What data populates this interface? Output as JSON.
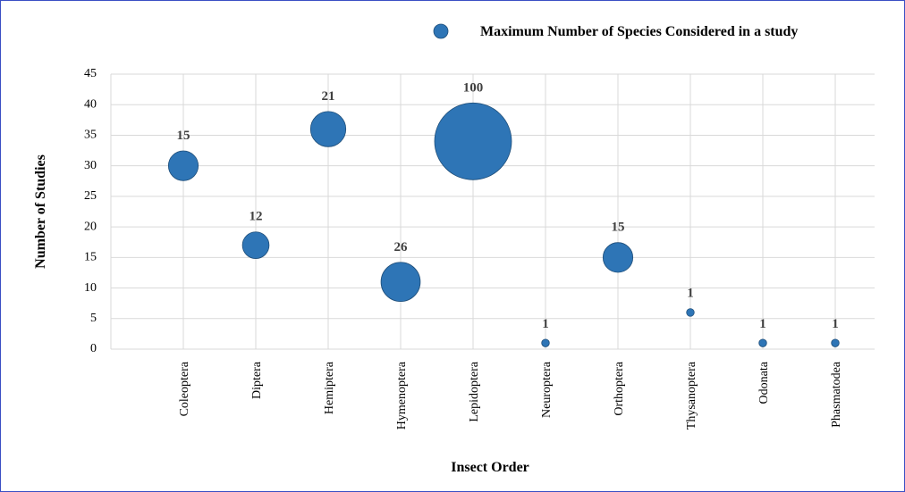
{
  "chart_data": {
    "type": "bubble",
    "x_label": "Insect Order",
    "y_label": "Number of Studies",
    "categories": [
      "Coleoptera",
      "Diptera",
      "Hemiptera",
      "Hymenoptera",
      "Lepidoptera",
      "Neuroptera",
      "Orthoptera",
      "Thysanoptera",
      "Odonata",
      "Phasmatodea"
    ],
    "series": [
      {
        "name": "Maximum Number of Species Considered in a study",
        "color": "#2e75b6",
        "values": [
          30,
          17,
          36,
          11,
          34,
          1,
          15,
          6,
          1,
          1
        ],
        "sizes": [
          15,
          12,
          21,
          26,
          100,
          1,
          15,
          1,
          1,
          1
        ]
      }
    ],
    "ylim": [
      0,
      45
    ],
    "yticks": [
      0,
      5,
      10,
      15,
      20,
      25,
      30,
      35,
      40,
      45
    ],
    "grid": true,
    "legend": "top-right"
  }
}
